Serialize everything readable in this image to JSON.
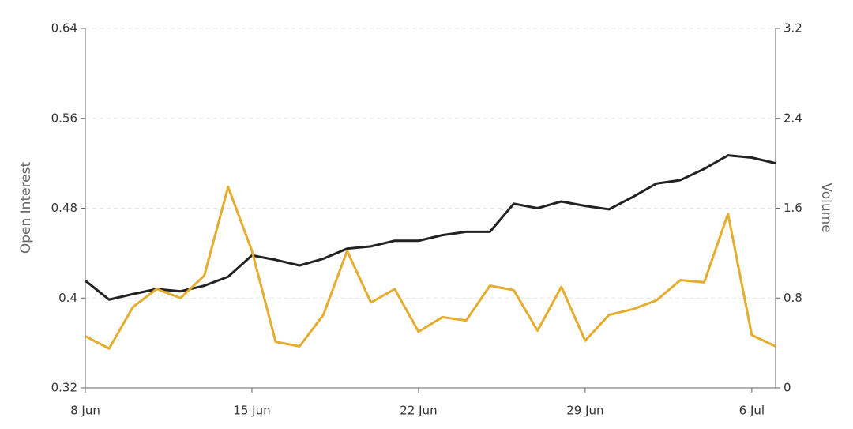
{
  "chart_data": {
    "type": "line",
    "y_label": "Open Interest",
    "y2_label": "Volume",
    "categories": [
      "8 Jun",
      null,
      null,
      null,
      null,
      null,
      null,
      "15 Jun",
      null,
      null,
      null,
      null,
      null,
      null,
      "22 Jun",
      null,
      null,
      null,
      null,
      null,
      null,
      "29 Jun",
      null,
      null,
      null,
      null,
      null,
      null,
      "6 Jul",
      null
    ],
    "series": [
      {
        "color": "#222222",
        "values": [
          0.4155,
          0.3986,
          0.4035,
          0.408,
          0.406,
          0.411,
          0.419,
          0.438,
          0.434,
          0.429,
          0.435,
          0.444,
          0.446,
          0.451,
          0.451,
          0.456,
          0.459,
          0.459,
          0.484,
          0.48,
          0.486,
          0.482,
          0.479,
          0.49,
          0.502,
          0.505,
          0.515,
          0.527,
          0.525,
          0.52
        ]
      },
      {
        "color": "#e6ac2e",
        "axis": "y2",
        "values": [
          0.46,
          0.35,
          0.72,
          0.88,
          0.8,
          1.0,
          1.79,
          1.22,
          0.41,
          0.37,
          0.65,
          1.22,
          0.76,
          0.88,
          0.5,
          0.63,
          0.6,
          0.91,
          0.87,
          0.51,
          0.9,
          0.42,
          0.65,
          0.7,
          0.78,
          0.96,
          0.94,
          1.55,
          0.47,
          0.37
        ]
      }
    ],
    "ylim": [
      0.32,
      0.64
    ],
    "yticks": [
      0.32,
      0.4,
      0.48,
      0.56,
      0.64
    ],
    "y2lim": [
      0,
      3.2
    ],
    "y2ticks": [
      0,
      0.8,
      1.6,
      2.4,
      3.2
    ],
    "grid": true
  }
}
